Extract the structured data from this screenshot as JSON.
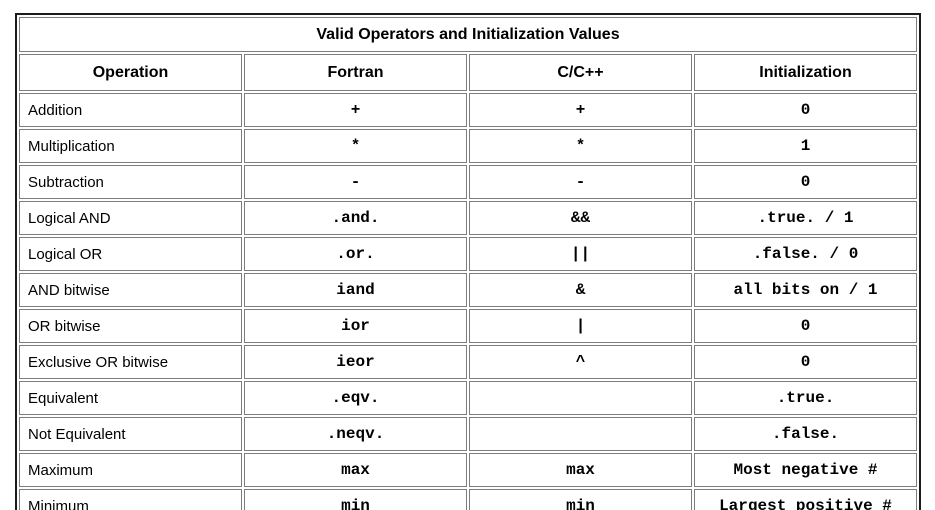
{
  "table": {
    "title": "Valid Operators and Initialization Values",
    "columns": [
      "Operation",
      "Fortran",
      "C/C++",
      "Initialization"
    ],
    "rows": [
      {
        "operation": "Addition",
        "fortran": "+",
        "cpp": "+",
        "initialization": "0"
      },
      {
        "operation": "Multiplication",
        "fortran": "*",
        "cpp": "*",
        "initialization": "1"
      },
      {
        "operation": "Subtraction",
        "fortran": "-",
        "cpp": "-",
        "initialization": "0"
      },
      {
        "operation": "Logical AND",
        "fortran": ".and.",
        "cpp": "&&",
        "initialization": ".true. / 1"
      },
      {
        "operation": "Logical OR",
        "fortran": ".or.",
        "cpp": "||",
        "initialization": ".false. / 0"
      },
      {
        "operation": "AND bitwise",
        "fortran": "iand",
        "cpp": "&",
        "initialization": "all bits on / 1"
      },
      {
        "operation": "OR bitwise",
        "fortran": "ior",
        "cpp": "|",
        "initialization": "0"
      },
      {
        "operation": "Exclusive OR bitwise",
        "fortran": "ieor",
        "cpp": "^",
        "initialization": "0"
      },
      {
        "operation": "Equivalent",
        "fortran": ".eqv.",
        "cpp": "",
        "initialization": ".true."
      },
      {
        "operation": "Not Equivalent",
        "fortran": ".neqv.",
        "cpp": "",
        "initialization": ".false."
      },
      {
        "operation": "Maximum",
        "fortran": "max",
        "cpp": "max",
        "initialization": "Most negative #"
      },
      {
        "operation": "Minimum",
        "fortran": "min",
        "cpp": "min",
        "initialization": "Largest positive #"
      }
    ],
    "colors": {
      "header_bg": "#a3b2d6",
      "outer_border": "#1c1c1c",
      "grid_border": "#7d7d7d",
      "text": "#000000",
      "cell_bg": "#ffffff"
    }
  }
}
